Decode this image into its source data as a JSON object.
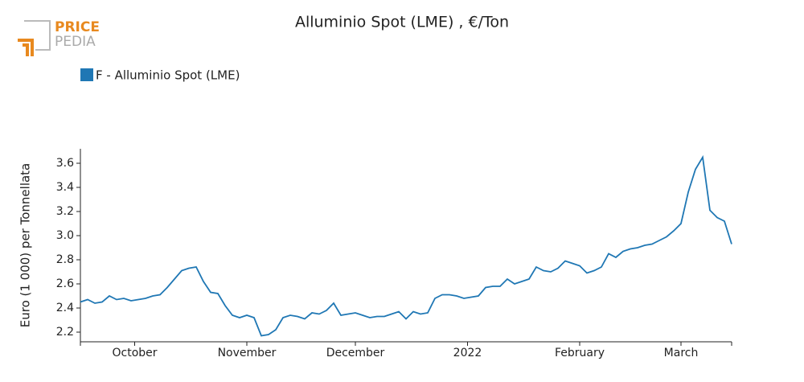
{
  "logo": {
    "top": "PRICE",
    "bottom": "PEDIA"
  },
  "chart_data": {
    "type": "line",
    "title": "Alluminio Spot (LME) , €/Ton",
    "ylabel": "Euro (1 000) per Tonnellata",
    "series": [
      {
        "name": "F - Alluminio Spot (LME)",
        "color": "#1f77b4",
        "values": [
          2.45,
          2.47,
          2.44,
          2.45,
          2.5,
          2.47,
          2.48,
          2.46,
          2.47,
          2.48,
          2.5,
          2.51,
          2.57,
          2.64,
          2.71,
          2.73,
          2.74,
          2.62,
          2.53,
          2.52,
          2.42,
          2.34,
          2.32,
          2.34,
          2.32,
          2.17,
          2.18,
          2.22,
          2.32,
          2.34,
          2.33,
          2.31,
          2.36,
          2.35,
          2.38,
          2.44,
          2.34,
          2.35,
          2.36,
          2.34,
          2.32,
          2.33,
          2.33,
          2.35,
          2.37,
          2.31,
          2.37,
          2.35,
          2.36,
          2.48,
          2.51,
          2.51,
          2.5,
          2.48,
          2.49,
          2.5,
          2.57,
          2.58,
          2.58,
          2.64,
          2.6,
          2.62,
          2.64,
          2.74,
          2.71,
          2.7,
          2.73,
          2.79,
          2.77,
          2.75,
          2.69,
          2.71,
          2.74,
          2.85,
          2.82,
          2.87,
          2.89,
          2.9,
          2.92,
          2.93,
          2.96,
          2.99,
          3.04,
          3.1,
          3.36,
          3.55,
          3.65,
          3.21,
          3.15,
          3.12,
          2.93
        ]
      }
    ],
    "xlim": [
      0,
      90
    ],
    "xticks": [
      {
        "value": 7.5,
        "label": "October"
      },
      {
        "value": 23,
        "label": "November"
      },
      {
        "value": 38,
        "label": "December"
      },
      {
        "value": 53.5,
        "label": "2022"
      },
      {
        "value": 69,
        "label": "February"
      },
      {
        "value": 83,
        "label": "March"
      }
    ],
    "ylim": [
      2.12,
      3.72
    ],
    "yticks": [
      2.2,
      2.4,
      2.6,
      2.8,
      {
        "value": 3,
        "label": "3.0"
      },
      3.2,
      3.4,
      3.6
    ],
    "legend": "top-left",
    "grid": false
  }
}
